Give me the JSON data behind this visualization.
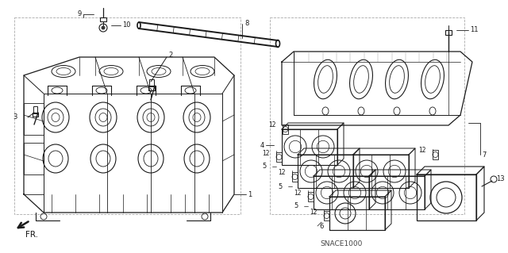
{
  "bg_color": "#ffffff",
  "line_color": "#1a1a1a",
  "fig_width": 6.4,
  "fig_height": 3.19,
  "dpi": 100,
  "snace_label": "SNACE1000",
  "callout_fontsize": 6.0,
  "small_fontsize": 5.5
}
